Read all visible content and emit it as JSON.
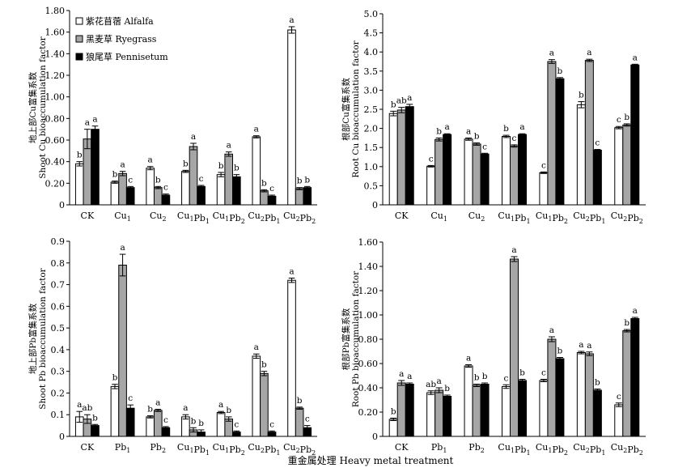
{
  "figure": {
    "x_title": "重金属处理 Heavy metal treatment",
    "legend": [
      {
        "name": "紫花苜蓿 Alfalfa",
        "color": "#ffffff"
      },
      {
        "name": "黑麦草 Ryegrass",
        "color": "#a6a6a6"
      },
      {
        "name": "狼尾草 Pennisetum",
        "color": "#000000"
      }
    ]
  },
  "chart_data": [
    {
      "type": "bar",
      "ylabel_cn": "地上部Cu富集系数",
      "ylabel_en": "Shoot Cu bioaccumulation factor",
      "ylim": [
        0,
        1.8
      ],
      "yticks": [
        "0",
        "0.20",
        "0.40",
        "0.60",
        "0.80",
        "1.00",
        "1.20",
        "1.40",
        "1.60",
        "1.80"
      ],
      "categories": [
        [
          "CK",
          ""
        ],
        [
          "Cu",
          "1"
        ],
        [
          "Cu",
          "2"
        ],
        [
          "Cu",
          "1",
          "Pb",
          "1"
        ],
        [
          "Cu",
          "1",
          "Pb",
          "2"
        ],
        [
          "Cu",
          "2",
          "Pb",
          "1"
        ],
        [
          "Cu",
          "2",
          "Pb",
          "2"
        ]
      ],
      "series": [
        {
          "name": "紫花苜蓿 Alfalfa",
          "color": "#ffffff",
          "values": [
            0.38,
            0.21,
            0.34,
            0.31,
            0.28,
            0.63,
            1.62
          ],
          "errors": [
            0.02,
            0.01,
            0.015,
            0.01,
            0.02,
            0.01,
            0.03
          ],
          "letters": [
            "b",
            "b",
            "a",
            "b",
            "b",
            "a",
            "a"
          ]
        },
        {
          "name": "黑麦草 Ryegrass",
          "color": "#a6a6a6",
          "values": [
            0.61,
            0.29,
            0.16,
            0.54,
            0.47,
            0.13,
            0.15
          ],
          "errors": [
            0.09,
            0.02,
            0.01,
            0.03,
            0.02,
            0.01,
            0.01
          ],
          "letters": [
            "a",
            "a",
            "b",
            "a",
            "a",
            "b",
            "b"
          ]
        },
        {
          "name": "狼尾草 Pennisetum",
          "color": "#000000",
          "values": [
            0.7,
            0.16,
            0.09,
            0.17,
            0.26,
            0.08,
            0.16
          ],
          "errors": [
            0.03,
            0.01,
            0.01,
            0.01,
            0.02,
            0.01,
            0.01
          ],
          "letters": [
            "a",
            "c",
            "c",
            "c",
            "b",
            "c",
            "b"
          ]
        }
      ],
      "legend_position": "top-left"
    },
    {
      "type": "bar",
      "ylabel_cn": "根部Cu富集系数",
      "ylabel_en": "Root Cu bioaccumulation factor",
      "ylim": [
        0,
        5.0
      ],
      "yticks": [
        "0",
        "0.5",
        "1.0",
        "1.5",
        "2.0",
        "2.5",
        "3.0",
        "3.5",
        "4.0",
        "4.5",
        "5.0"
      ],
      "categories": [
        [
          "CK",
          ""
        ],
        [
          "Cu",
          "1"
        ],
        [
          "Cu",
          "2"
        ],
        [
          "Cu",
          "1",
          "Pb",
          "1"
        ],
        [
          "Cu",
          "1",
          "Pb",
          "2"
        ],
        [
          "Cu",
          "2",
          "Pb",
          "1"
        ],
        [
          "Cu",
          "2",
          "Pb",
          "2"
        ]
      ],
      "series": [
        {
          "name": "紫花苜蓿 Alfalfa",
          "color": "#ffffff",
          "values": [
            2.39,
            1.01,
            1.72,
            1.79,
            0.84,
            2.62,
            2.02
          ],
          "errors": [
            0.06,
            0.02,
            0.03,
            0.03,
            0.02,
            0.08,
            0.03
          ],
          "letters": [
            "b",
            "c",
            "a",
            "b",
            "c",
            "b",
            "c"
          ]
        },
        {
          "name": "黑麦草 Ryegrass",
          "color": "#a6a6a6",
          "values": [
            2.48,
            1.71,
            1.59,
            1.54,
            3.75,
            3.78,
            2.09
          ],
          "errors": [
            0.07,
            0.04,
            0.03,
            0.03,
            0.05,
            0.03,
            0.03
          ],
          "letters": [
            "ab",
            "b",
            "b",
            "c",
            "a",
            "a",
            "b"
          ]
        },
        {
          "name": "狼尾草 Pennisetum",
          "color": "#000000",
          "values": [
            2.57,
            1.84,
            1.33,
            1.84,
            3.3,
            1.43,
            3.66
          ],
          "errors": [
            0.06,
            0.02,
            0.02,
            0.02,
            0.03,
            0.02,
            0.02
          ],
          "letters": [
            "a",
            "a",
            "c",
            "a",
            "b",
            "c",
            "a"
          ]
        }
      ]
    },
    {
      "type": "bar",
      "ylabel_cn": "地上部Pb富集系数",
      "ylabel_en": "Shoot Pb bioaccumulation factor",
      "ylim": [
        0,
        0.9
      ],
      "yticks": [
        "0",
        "0.1",
        "0.2",
        "0.3",
        "0.4",
        "0.5",
        "0.6",
        "0.7",
        "0.8",
        "0.9"
      ],
      "categories": [
        [
          "CK",
          ""
        ],
        [
          "Pb",
          "1"
        ],
        [
          "Pb",
          "2"
        ],
        [
          "Cu",
          "1",
          "Pb",
          "1"
        ],
        [
          "Cu",
          "1",
          "Pb",
          "2"
        ],
        [
          "Cu",
          "2",
          "Pb",
          "1"
        ],
        [
          "Cu",
          "2",
          "Pb",
          "2"
        ]
      ],
      "series": [
        {
          "name": "紫花苜蓿 Alfalfa",
          "color": "#ffffff",
          "values": [
            0.09,
            0.23,
            0.09,
            0.09,
            0.11,
            0.37,
            0.72
          ],
          "errors": [
            0.025,
            0.01,
            0.005,
            0.01,
            0.005,
            0.01,
            0.01
          ],
          "letters": [
            "a",
            "b",
            "b",
            "a",
            "a",
            "a",
            "a"
          ]
        },
        {
          "name": "黑麦草 Ryegrass",
          "color": "#a6a6a6",
          "values": [
            0.08,
            0.79,
            0.12,
            0.03,
            0.08,
            0.29,
            0.13
          ],
          "errors": [
            0.02,
            0.05,
            0.005,
            0.01,
            0.01,
            0.01,
            0.005
          ],
          "letters": [
            "ab",
            "a",
            "a",
            "b",
            "b",
            "b",
            "b"
          ]
        },
        {
          "name": "狼尾草 Pennisetum",
          "color": "#000000",
          "values": [
            0.05,
            0.13,
            0.04,
            0.02,
            0.02,
            0.02,
            0.04
          ],
          "errors": [
            0.005,
            0.015,
            0.005,
            0.01,
            0.005,
            0.005,
            0.01
          ],
          "letters": [
            "b",
            "c",
            "c",
            "b",
            "c",
            "c",
            "c"
          ]
        }
      ]
    },
    {
      "type": "bar",
      "ylabel_cn": "根部Pb富集系数",
      "ylabel_en": "Root Pb bioaccumulation factor",
      "ylim": [
        0,
        1.6
      ],
      "yticks": [
        "0",
        "0.20",
        "0.40",
        "0.60",
        "0.80",
        "1.00",
        "1.20",
        "1.40",
        "1.60"
      ],
      "categories": [
        [
          "CK",
          ""
        ],
        [
          "Pb",
          "1"
        ],
        [
          "Pb",
          "2"
        ],
        [
          "Cu",
          "1",
          "Pb",
          "1"
        ],
        [
          "Cu",
          "1",
          "Pb",
          "2"
        ],
        [
          "Cu",
          "2",
          "Pb",
          "1"
        ],
        [
          "Cu",
          "2",
          "Pb",
          "2"
        ]
      ],
      "series": [
        {
          "name": "紫花苜蓿 Alfalfa",
          "color": "#ffffff",
          "values": [
            0.14,
            0.36,
            0.58,
            0.41,
            0.46,
            0.69,
            0.26
          ],
          "errors": [
            0.01,
            0.015,
            0.01,
            0.015,
            0.01,
            0.01,
            0.015
          ],
          "letters": [
            "b",
            "ab",
            "a",
            "c",
            "c",
            "a",
            "c"
          ]
        },
        {
          "name": "黑麦草 Ryegrass",
          "color": "#a6a6a6",
          "values": [
            0.44,
            0.38,
            0.42,
            1.46,
            0.8,
            0.68,
            0.87
          ],
          "errors": [
            0.02,
            0.02,
            0.01,
            0.02,
            0.02,
            0.015,
            0.01
          ],
          "letters": [
            "a",
            "a",
            "b",
            "a",
            "a",
            "a",
            "b"
          ]
        },
        {
          "name": "狼尾草 Pennisetum",
          "color": "#000000",
          "values": [
            0.43,
            0.33,
            0.43,
            0.46,
            0.64,
            0.38,
            0.97
          ],
          "errors": [
            0.01,
            0.01,
            0.01,
            0.01,
            0.01,
            0.01,
            0.01
          ],
          "letters": [
            "a",
            "b",
            "b",
            "b",
            "b",
            "b",
            "a"
          ]
        }
      ]
    }
  ]
}
